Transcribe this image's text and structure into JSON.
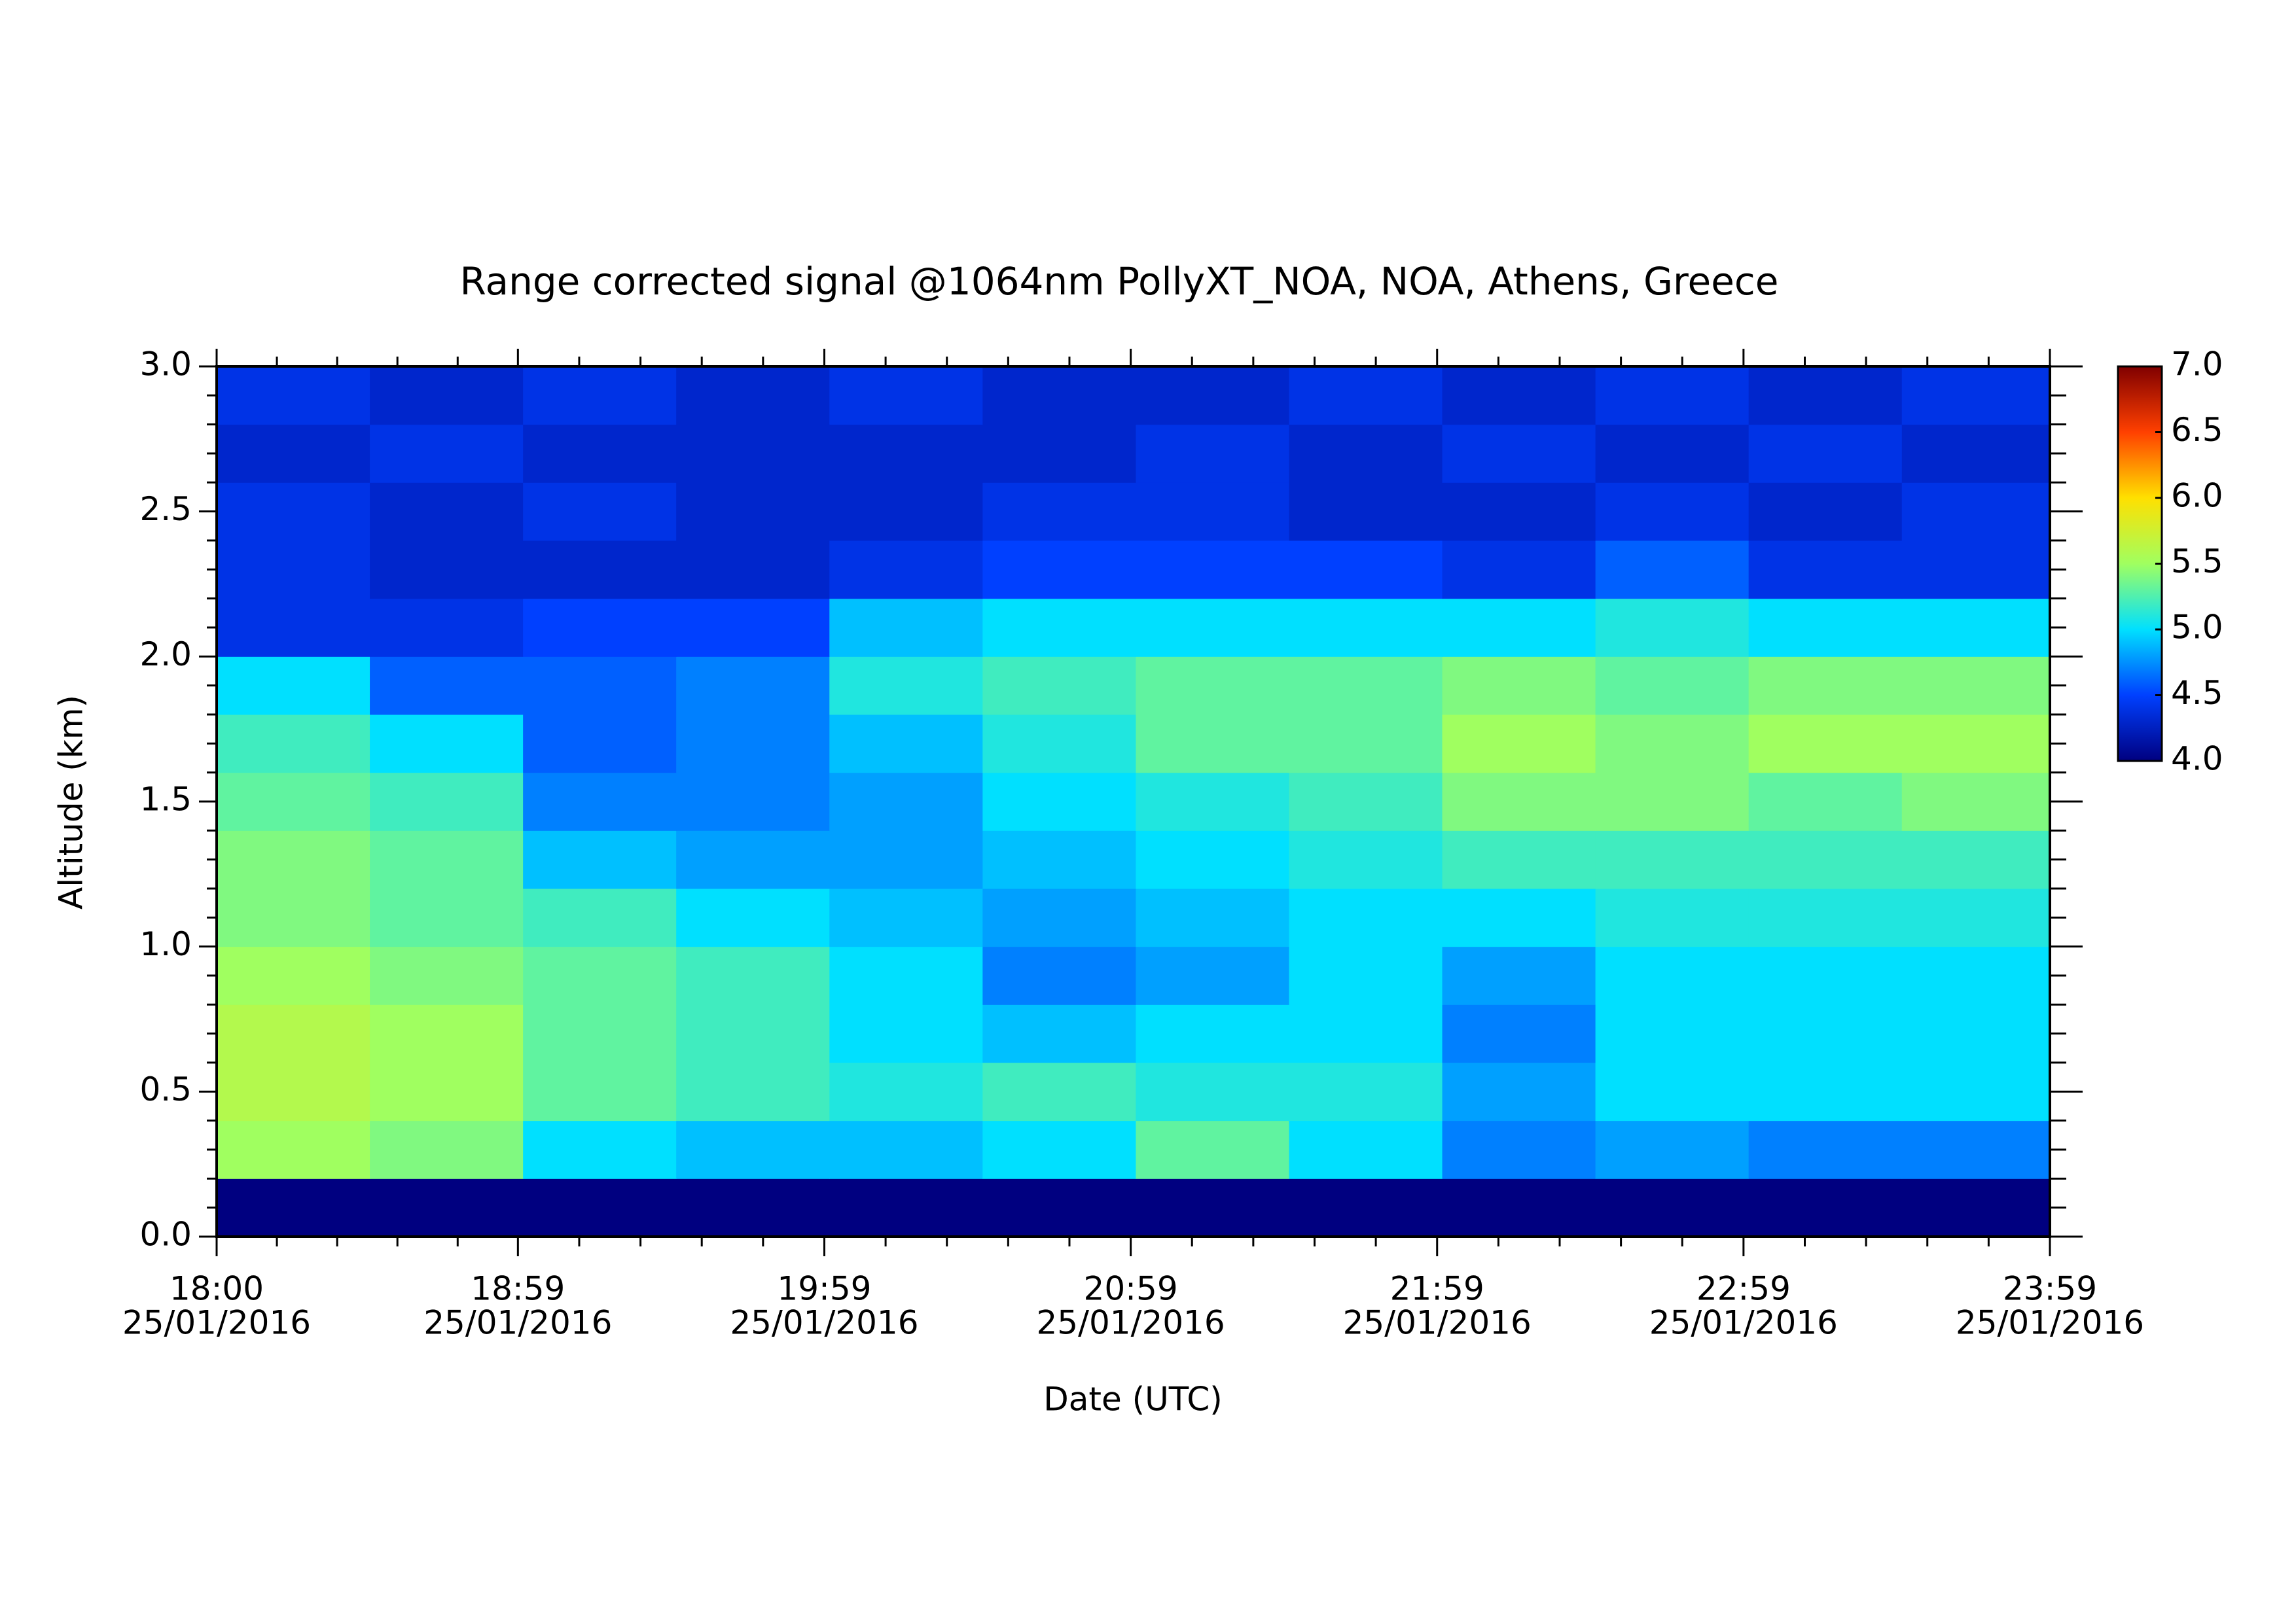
{
  "chart_data": {
    "type": "heatmap",
    "title": "Range corrected signal @1064nm  PollyXT_NOA, NOA, Athens, Greece",
    "x_label": "Date (UTC)",
    "y_label": "Altitude (km)",
    "xlim": [
      "18:00",
      "23:59"
    ],
    "xticks": [
      "18:00",
      "18:59",
      "19:59",
      "20:59",
      "21:59",
      "22:59",
      "23:59"
    ],
    "xtick_dates": [
      "25/01/2016",
      "25/01/2016",
      "25/01/2016",
      "25/01/2016",
      "25/01/2016",
      "25/01/2016",
      "25/01/2016"
    ],
    "ylim": [
      0,
      3
    ],
    "yticks": [
      {
        "value": 0,
        "label": "0.0"
      },
      {
        "value": 0.5,
        "label": "0.5"
      },
      {
        "value": 1,
        "label": "1.0"
      },
      {
        "value": 1.5,
        "label": "1.5"
      },
      {
        "value": 2,
        "label": "2.0"
      },
      {
        "value": 2.5,
        "label": "2.5"
      },
      {
        "value": 3,
        "label": "3.0"
      }
    ],
    "x": [
      "18:00",
      "18:30",
      "19:00",
      "19:30",
      "20:00",
      "20:30",
      "21:00",
      "21:30",
      "22:00",
      "22:30",
      "23:00",
      "23:30",
      "23:59"
    ],
    "y": [
      0,
      0.2,
      0.4,
      0.6,
      0.8,
      1.0,
      1.2,
      1.4,
      1.6,
      1.8,
      2.0,
      2.2,
      2.4,
      2.6,
      2.8,
      3.0
    ],
    "values": [
      [
        4.0,
        4.0,
        4.0,
        4.0,
        4.0,
        4.0,
        4.0,
        4.0,
        4.0,
        4.0,
        4.0,
        4.0
      ],
      [
        5.5,
        5.4,
        5.0,
        4.9,
        4.9,
        5.0,
        5.3,
        5.0,
        4.7,
        4.8,
        4.7,
        4.7
      ],
      [
        5.6,
        5.5,
        5.3,
        5.2,
        5.1,
        5.2,
        5.1,
        5.1,
        4.8,
        5.0,
        5.0,
        5.0
      ],
      [
        5.6,
        5.5,
        5.3,
        5.2,
        5.0,
        4.9,
        5.0,
        5.0,
        4.7,
        5.0,
        5.0,
        5.0
      ],
      [
        5.5,
        5.4,
        5.3,
        5.2,
        5.0,
        4.7,
        4.8,
        5.0,
        4.8,
        5.0,
        5.0,
        5.0
      ],
      [
        5.4,
        5.3,
        5.2,
        5.0,
        4.9,
        4.8,
        4.9,
        5.0,
        5.0,
        5.1,
        5.1,
        5.1
      ],
      [
        5.4,
        5.3,
        4.9,
        4.8,
        4.8,
        4.9,
        5.0,
        5.1,
        5.2,
        5.2,
        5.2,
        5.2
      ],
      [
        5.3,
        5.2,
        4.7,
        4.7,
        4.8,
        5.0,
        5.1,
        5.2,
        5.4,
        5.4,
        5.3,
        5.4
      ],
      [
        5.2,
        5.0,
        4.6,
        4.7,
        4.9,
        5.1,
        5.3,
        5.3,
        5.5,
        5.4,
        5.5,
        5.5
      ],
      [
        5.0,
        4.6,
        4.6,
        4.7,
        5.1,
        5.2,
        5.3,
        5.3,
        5.4,
        5.3,
        5.4,
        5.4
      ],
      [
        4.4,
        4.4,
        4.5,
        4.5,
        4.9,
        5.0,
        5.0,
        5.0,
        5.0,
        5.1,
        5.0,
        5.0
      ],
      [
        4.4,
        4.3,
        4.3,
        4.3,
        4.4,
        4.5,
        4.5,
        4.5,
        4.4,
        4.6,
        4.4,
        4.4
      ],
      [
        4.4,
        4.3,
        4.4,
        4.3,
        4.3,
        4.4,
        4.4,
        4.3,
        4.3,
        4.4,
        4.3,
        4.4
      ],
      [
        4.3,
        4.4,
        4.3,
        4.3,
        4.3,
        4.3,
        4.4,
        4.3,
        4.4,
        4.3,
        4.4,
        4.3
      ],
      [
        4.4,
        4.3,
        4.4,
        4.3,
        4.4,
        4.3,
        4.3,
        4.4,
        4.3,
        4.4,
        4.3,
        4.4
      ]
    ],
    "zlim": [
      4,
      7
    ],
    "zticks": [
      {
        "value": 4,
        "label": "4.0"
      },
      {
        "value": 4.5,
        "label": "4.5"
      },
      {
        "value": 5,
        "label": "5.0"
      },
      {
        "value": 5.5,
        "label": "5.5"
      },
      {
        "value": 6,
        "label": "6.0"
      },
      {
        "value": 6.5,
        "label": "6.5"
      },
      {
        "value": 7,
        "label": "7.0"
      }
    ],
    "colormap": [
      "#000080",
      "#0040ff",
      "#00e0ff",
      "#a0ff60",
      "#ffe000",
      "#ff4000",
      "#800000"
    ]
  }
}
